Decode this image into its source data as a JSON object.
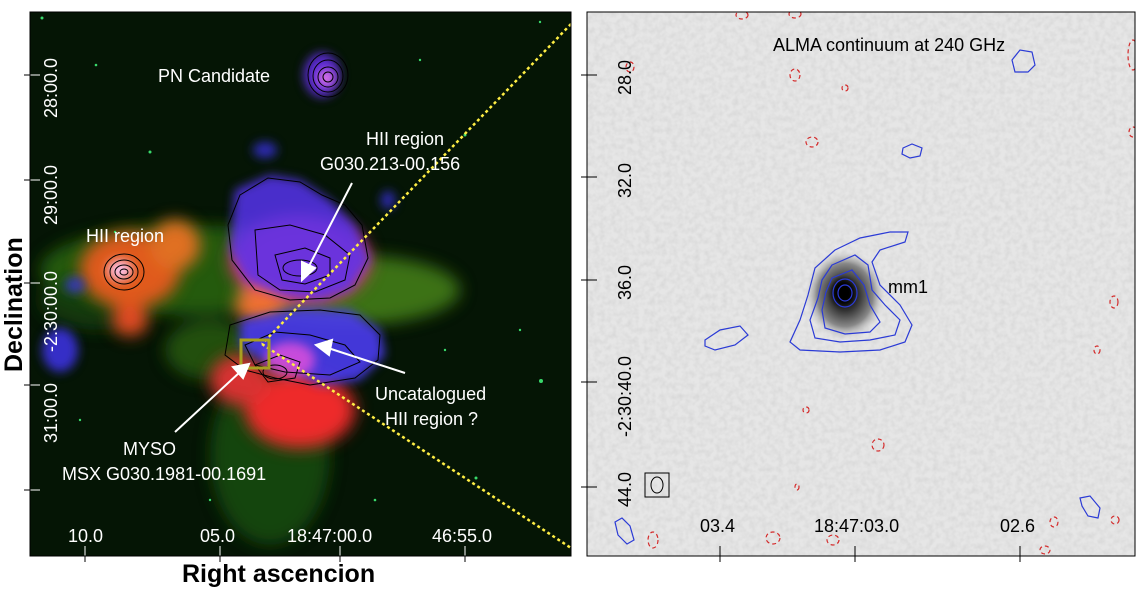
{
  "left_panel": {
    "labels": {
      "pn": "PN Candidate",
      "hii_main_1": "HII region",
      "hii_main_2": "G030.213-00.156",
      "hii_west": "HII region",
      "uncat_1": "Uncatalogued",
      "uncat_2": "HII region ?",
      "mys_1": "MYSO",
      "mys_2": "MSX G030.1981-00.1691"
    },
    "x_ticks": [
      "10.0",
      "05.0",
      "18:47:00.0",
      "46:55.0"
    ],
    "y_ticks": [
      "28:00.0",
      "29:00.0",
      "-2:30:00.0",
      "31:00.0"
    ],
    "x_axis_title": "Right ascencion",
    "y_axis_title": "Declination"
  },
  "right_panel": {
    "title": "ALMA continuum at 240 GHz",
    "source_label": "mm1",
    "x_ticks": [
      "03.4",
      "18:47:03.0",
      "02.6"
    ],
    "y_ticks": [
      "28.0",
      "32.0",
      "36.0",
      "-2:30:40.0",
      "44.0"
    ]
  }
}
